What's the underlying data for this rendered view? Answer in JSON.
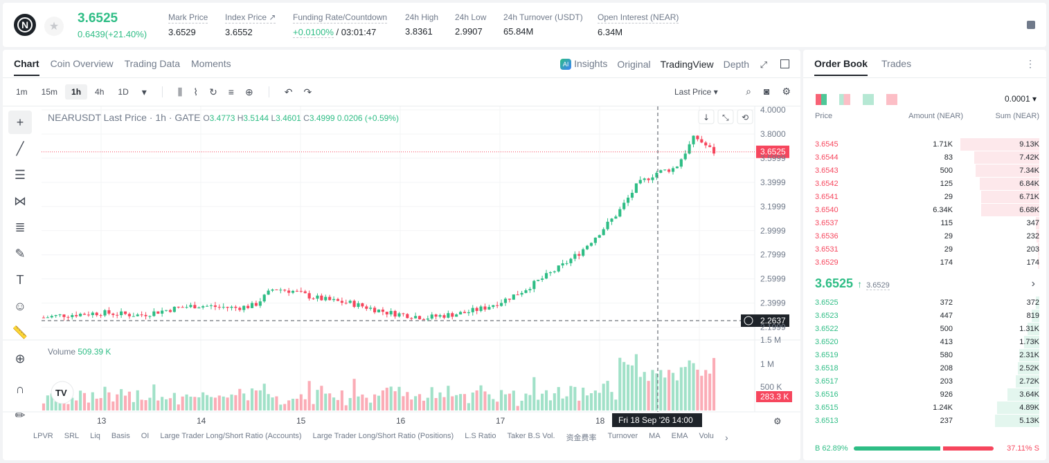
{
  "header": {
    "logo_letter": "N",
    "star_icon": "star-icon",
    "last_price": "3.6525",
    "change": "0.6439(+21.40%)",
    "stats": [
      {
        "label": "Mark Price",
        "value": "3.6529"
      },
      {
        "label": "Index Price ↗",
        "value": "3.6552"
      },
      {
        "label": "Funding Rate/Countdown",
        "value_green": "+0.0100%",
        "value": " / 03:01:47"
      },
      {
        "label": "24h High",
        "value": "3.8361"
      },
      {
        "label": "24h Low",
        "value": "2.9907"
      },
      {
        "label": "24h Turnover (USDT)",
        "value": "65.84M"
      },
      {
        "label": "Open Interest (NEAR)",
        "value": "6.34M"
      }
    ]
  },
  "chart_tabs": [
    "Chart",
    "Coin Overview",
    "Trading Data",
    "Moments"
  ],
  "view_tabs": {
    "insights": "Insights",
    "original": "Original",
    "tradingview": "TradingView",
    "depth": "Depth"
  },
  "timeframes": [
    "1m",
    "15m",
    "1h",
    "4h",
    "1D"
  ],
  "active_timeframe": "1h",
  "last_price_selector": "Last Price",
  "legend": {
    "symbol": "NEARUSDT Last Price · 1h · GATE",
    "o_label": "O",
    "o": "3.4773",
    "h_label": "H",
    "h": "3.5144",
    "l_label": "L",
    "l": "3.4601",
    "c_label": "C",
    "c": "3.4999",
    "chg": "0.0206 (+0.59%)"
  },
  "volume_legend": {
    "label": "Volume",
    "value": "509.39 K"
  },
  "price_axis": [
    "4.0000",
    "3.8000",
    "3.5999",
    "3.3999",
    "3.1999",
    "2.9999",
    "2.7999",
    "2.5999",
    "2.3999",
    "2.1999"
  ],
  "volume_axis": [
    "1.5 M",
    "1 M",
    "500 K"
  ],
  "time_axis": [
    "13",
    "14",
    "15",
    "16",
    "17",
    "18"
  ],
  "current_price_tag": "3.6525",
  "crosshair_price_tag": "2.2637",
  "crosshair_time_tag": "Fri 18 Sep '26   14:00",
  "volume_tag": "283.3 K",
  "bottom_indicators": [
    "LPVR",
    "SRL",
    "Liq",
    "Basis",
    "OI",
    "Large Trader Long/Short Ratio (Accounts)",
    "Large Trader Long/Short Ratio (Positions)",
    "L.S Ratio",
    "Taker B.S Vol.",
    "资金费率",
    "Turnover",
    "MA",
    "EMA",
    "Volu"
  ],
  "orderbook": {
    "tabs": [
      "Order Book",
      "Trades"
    ],
    "precision": "0.0001",
    "col_price": "Price",
    "col_amount": "Amount (NEAR)",
    "col_sum": "Sum (NEAR)",
    "asks": [
      {
        "price": "3.6545",
        "amount": "1.71K",
        "sum": "9.13K",
        "depth": 0.95
      },
      {
        "price": "3.6544",
        "amount": "83",
        "sum": "7.42K",
        "depth": 0.78
      },
      {
        "price": "3.6543",
        "amount": "500",
        "sum": "7.34K",
        "depth": 0.77
      },
      {
        "price": "3.6542",
        "amount": "125",
        "sum": "6.84K",
        "depth": 0.72
      },
      {
        "price": "3.6541",
        "amount": "29",
        "sum": "6.71K",
        "depth": 0.7
      },
      {
        "price": "3.6540",
        "amount": "6.34K",
        "sum": "6.68K",
        "depth": 0.7
      },
      {
        "price": "3.6537",
        "amount": "115",
        "sum": "347",
        "depth": 0.04
      },
      {
        "price": "3.6536",
        "amount": "29",
        "sum": "232",
        "depth": 0.03
      },
      {
        "price": "3.6531",
        "amount": "29",
        "sum": "203",
        "depth": 0.02
      },
      {
        "price": "3.6529",
        "amount": "174",
        "sum": "174",
        "depth": 0.02
      }
    ],
    "mid_price": "3.6525",
    "mid_mark": "3.6529",
    "bids": [
      {
        "price": "3.6525",
        "amount": "372",
        "sum": "372",
        "depth": 0.04
      },
      {
        "price": "3.6523",
        "amount": "447",
        "sum": "819",
        "depth": 0.09
      },
      {
        "price": "3.6522",
        "amount": "500",
        "sum": "1.31K",
        "depth": 0.14
      },
      {
        "price": "3.6520",
        "amount": "413",
        "sum": "1.73K",
        "depth": 0.18
      },
      {
        "price": "3.6519",
        "amount": "580",
        "sum": "2.31K",
        "depth": 0.24
      },
      {
        "price": "3.6518",
        "amount": "208",
        "sum": "2.52K",
        "depth": 0.26
      },
      {
        "price": "3.6517",
        "amount": "203",
        "sum": "2.72K",
        "depth": 0.28
      },
      {
        "price": "3.6516",
        "amount": "926",
        "sum": "3.64K",
        "depth": 0.38
      },
      {
        "price": "3.6515",
        "amount": "1.24K",
        "sum": "4.89K",
        "depth": 0.51
      },
      {
        "price": "3.6513",
        "amount": "237",
        "sum": "5.13K",
        "depth": 0.53
      }
    ],
    "buy_label": "B 62.89%",
    "sell_label": "37.11% S",
    "buy_ratio": 0.6289
  },
  "colors": {
    "up": "#2ebd85",
    "down": "#f6465d"
  },
  "chart_data": {
    "type": "candlestick",
    "symbol": "NEARUSDT",
    "interval": "1h",
    "ylim": [
      2.1,
      4.0
    ],
    "x_ticks": [
      "13",
      "14",
      "15",
      "16",
      "17",
      "18"
    ],
    "series_close_approx": [
      2.28,
      2.3,
      2.31,
      2.32,
      2.31,
      2.3,
      2.33,
      2.36,
      2.38,
      2.37,
      2.36,
      2.38,
      2.52,
      2.5,
      2.45,
      2.42,
      2.4,
      2.36,
      2.32,
      2.3,
      2.28,
      2.3,
      2.32,
      2.36,
      2.42,
      2.5,
      2.6,
      2.7,
      2.82,
      2.98,
      3.15,
      3.38,
      3.48,
      3.52,
      3.78,
      3.65
    ]
  }
}
